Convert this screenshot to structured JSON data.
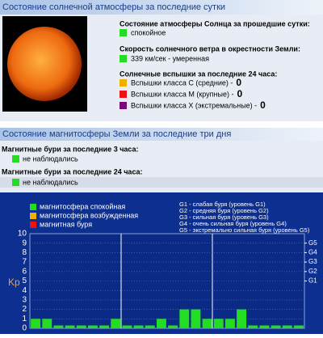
{
  "solar_section": {
    "title": "Состояние солнечной атмосферы за последние сутки",
    "atmosphere": {
      "heading": "Состояние атмосферы Солнца за прошедшие сутки:",
      "status": "спокойное",
      "color": "#22dd22"
    },
    "wind": {
      "heading": "Скорость солнечного ветра в окрестности Земли:",
      "status": "339 км/сек - умеренная",
      "color": "#22dd22"
    },
    "flares": {
      "heading": "Солнечные вспышки за последние 24 часа:",
      "items": [
        {
          "label": "Вспышки класса C (средние) -",
          "count": 0,
          "color": "#f0b000"
        },
        {
          "label": "Вспышки класса M (крупные) -",
          "count": 0,
          "color": "#ee1111"
        },
        {
          "label": "Вспышки класса X (экстремальные) -",
          "count": 0,
          "color": "#7a0a7a"
        }
      ]
    }
  },
  "magnetosphere_section": {
    "title": "Состояние магнитосферы Земли за последние три дня",
    "storms_3h": {
      "heading": "Магнитные бури за последние 3 часа:",
      "status": "не наблюдались",
      "color": "#22dd22"
    },
    "storms_24h": {
      "heading": "Магнитные бури за последние 24 часа:",
      "status": "не наблюдались",
      "color": "#22dd22"
    }
  },
  "chart_data": {
    "type": "bar",
    "y_label": "Kp",
    "legend": [
      {
        "label": "магнитосфера спокойная",
        "color": "#22dd22"
      },
      {
        "label": "магнитосфера возбужденная",
        "color": "#f0b000"
      },
      {
        "label": "магнитная буря",
        "color": "#ee1111"
      }
    ],
    "notes": [
      "G1 - слабая буря (уровень G1)",
      "G2 - средняя буря (уровень G2)",
      "G3 - сильная буря (уровень G3)",
      "G4 - очень сильная буря (уровень G4)",
      "G5 - экстремально сильная буря (уровень G5)"
    ],
    "values": [
      1,
      1,
      0.3,
      0.3,
      0.3,
      0.3,
      0.3,
      1,
      0.3,
      0.3,
      0.3,
      1,
      0.3,
      2,
      2,
      1,
      1,
      1,
      2,
      0.3,
      0.3,
      0.3,
      0.3,
      0.3
    ],
    "color": "#22dd22",
    "ylim": [
      0,
      10
    ],
    "yticks": [
      0,
      1,
      2,
      3,
      4,
      5,
      6,
      7,
      8,
      9,
      10
    ],
    "y2lim": [
      0,
      10
    ],
    "y2ticks": [
      {
        "value": 5,
        "label": "G1"
      },
      {
        "value": 6,
        "label": "G2"
      },
      {
        "value": 7,
        "label": "G3"
      },
      {
        "value": 8,
        "label": "G4"
      },
      {
        "value": 9,
        "label": "G5"
      }
    ],
    "grid": true
  }
}
